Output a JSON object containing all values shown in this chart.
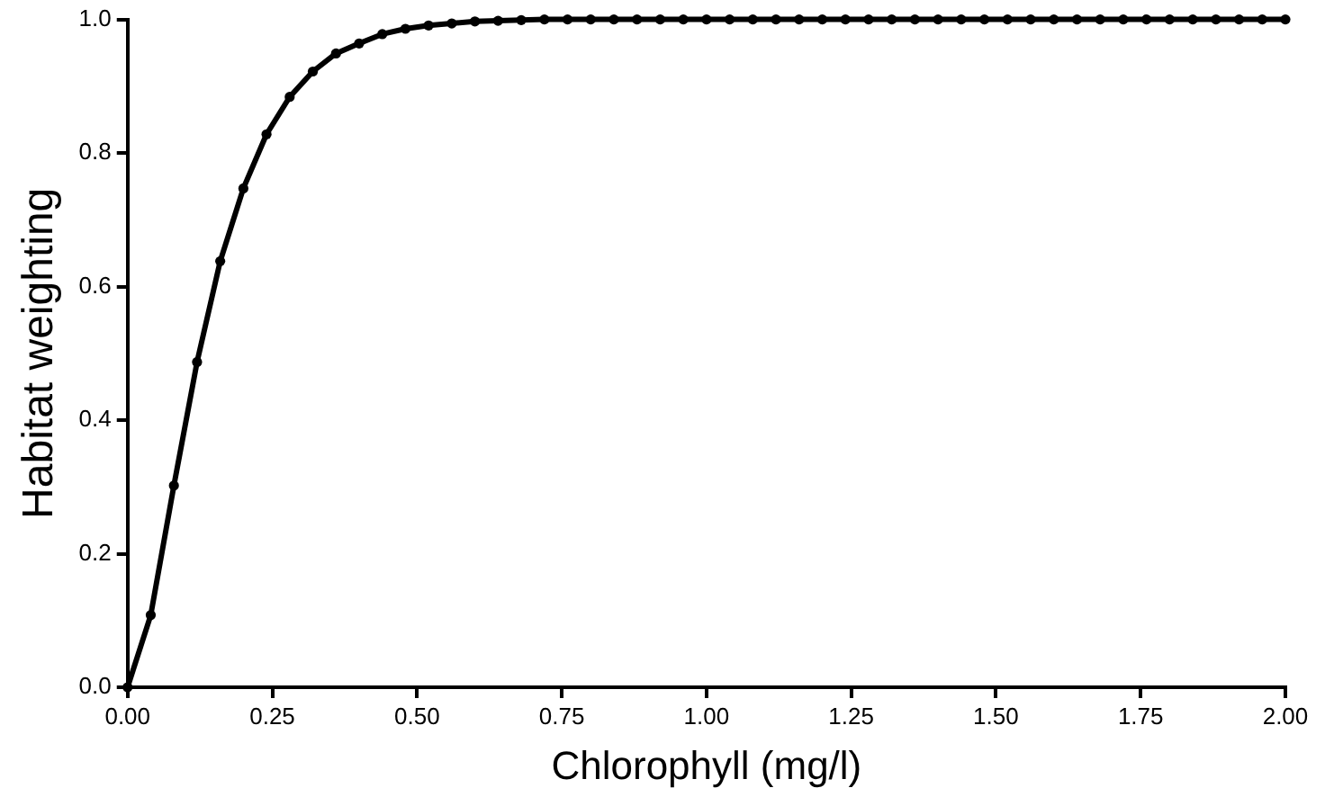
{
  "chart_data": {
    "type": "line",
    "xlabel": "Chlorophyll (mg/l)",
    "ylabel": "Habitat weighting",
    "x": [
      0,
      0.04,
      0.08,
      0.12,
      0.16,
      0.2,
      0.24,
      0.28,
      0.32,
      0.36,
      0.4,
      0.44,
      0.48,
      0.52,
      0.56,
      0.6,
      0.64,
      0.68,
      0.72,
      0.76,
      0.8,
      0.84,
      0.88,
      0.92,
      0.96,
      1,
      1.04,
      1.08,
      1.12,
      1.16,
      1.2,
      1.24,
      1.28,
      1.32,
      1.36,
      1.4,
      1.44,
      1.48,
      1.52,
      1.56,
      1.6,
      1.64,
      1.68,
      1.72,
      1.76,
      1.8,
      1.84,
      1.88,
      1.92,
      1.96,
      2
    ],
    "series": [
      {
        "color": "#000000",
        "values": [
          0,
          0.108,
          0.302,
          0.487,
          0.638,
          0.747,
          0.828,
          0.884,
          0.922,
          0.949,
          0.964,
          0.978,
          0.986,
          0.991,
          0.994,
          0.997,
          0.998,
          0.999,
          1,
          1,
          1,
          1,
          1,
          1,
          1,
          1,
          1,
          1,
          1,
          1,
          1,
          1,
          1,
          1,
          1,
          1,
          1,
          1,
          1,
          1,
          1,
          1,
          1,
          1,
          1,
          1,
          1,
          1,
          1,
          1,
          1
        ]
      }
    ],
    "xlim": [
      0,
      2
    ],
    "xticks": [
      {
        "value": 0,
        "label": "0.00"
      },
      {
        "value": 0.25,
        "label": "0.25"
      },
      {
        "value": 0.5,
        "label": "0.50"
      },
      {
        "value": 0.75,
        "label": "0.75"
      },
      {
        "value": 1,
        "label": "1.00"
      },
      {
        "value": 1.25,
        "label": "1.25"
      },
      {
        "value": 1.5,
        "label": "1.50"
      },
      {
        "value": 1.75,
        "label": "1.75"
      },
      {
        "value": 2,
        "label": "2.00"
      }
    ],
    "ylim": [
      0,
      1
    ],
    "yticks": [
      {
        "value": 0,
        "label": "0.0"
      },
      {
        "value": 0.2,
        "label": "0.2"
      },
      {
        "value": 0.4,
        "label": "0.4"
      },
      {
        "value": 0.6,
        "label": "0.6"
      },
      {
        "value": 0.8,
        "label": "0.8"
      },
      {
        "value": 1,
        "label": "1.0"
      }
    ],
    "grid": false,
    "legend": false,
    "marker": "circle",
    "line_style": "solid"
  }
}
